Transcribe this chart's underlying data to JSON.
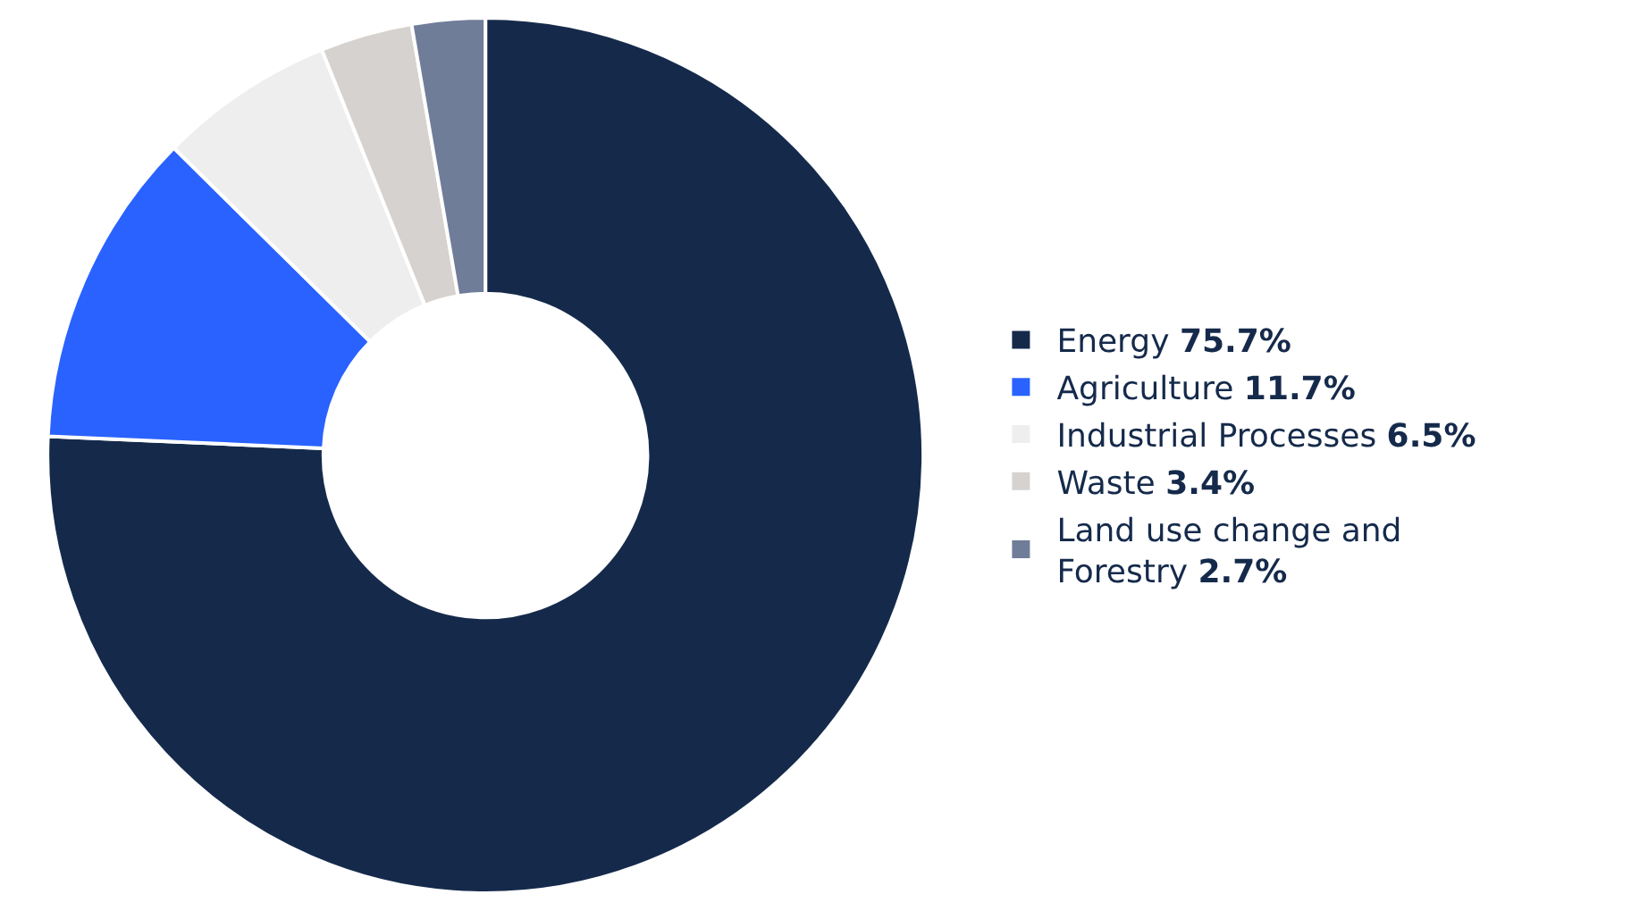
{
  "chart_data": {
    "type": "donut",
    "categories": [
      "Energy",
      "Agriculture",
      "Industrial Processes",
      "Waste",
      "Land use change and Forestry"
    ],
    "values": [
      75.7,
      11.7,
      6.5,
      3.4,
      2.7
    ],
    "value_labels": [
      "75.7%",
      "11.7%",
      "6.5%",
      "3.4%",
      "2.7%"
    ],
    "colors": [
      "#152a4b",
      "#2962ff",
      "#eeeeee",
      "#d6d2cf",
      "#6f7d99"
    ],
    "legend": "right"
  }
}
